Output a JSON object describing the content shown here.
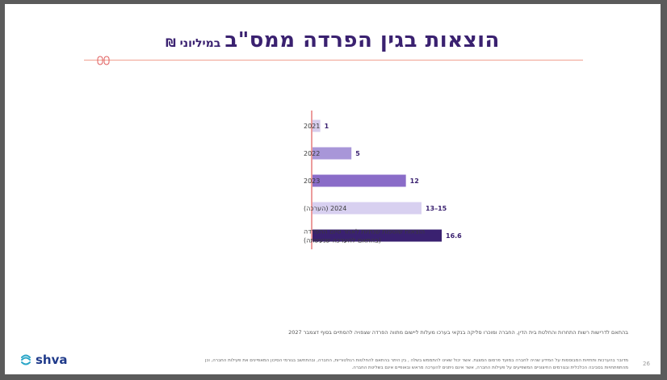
{
  "title": {
    "main": "הוצאות בגין הפרדה ממס\"ב",
    "sub": "במיליוני ₪"
  },
  "chart_data": {
    "type": "bar",
    "orientation": "horizontal",
    "categories": [
      "2021",
      "2022",
      "2023",
      "2024 (הערכה)",
      "הוצאות שוטפות שנתיות לאחר סיום ההפרדה (בהתאם להערכה שנעשתה)"
    ],
    "category_lines": [
      [
        "2021"
      ],
      [
        "2022"
      ],
      [
        "2023"
      ],
      [
        "2024 (הערכה)"
      ],
      [
        "הוצאות שוטפות שנתיות לאחר סיום ההפרדה",
        "(בהתאם להערכה שנעשתה)"
      ]
    ],
    "values": [
      1,
      5,
      12,
      14,
      16.6
    ],
    "value_labels": [
      "1",
      "5",
      "12",
      "13–15",
      "16.6"
    ],
    "bar_colors": [
      "#d6ccec",
      "#a896d8",
      "#8a6cc8",
      "#d8d0f0",
      "#3a2170"
    ],
    "xlim": [
      0,
      16.6
    ],
    "xlabel": "",
    "ylabel": ""
  },
  "colors": {
    "title": "#3a2170",
    "axis": "#e05a5a",
    "value_label": "#3a2170",
    "category_label": "#3a3a3a"
  },
  "footnote": "בהתאם לדרישות רשות התחרות והחלטת בית הדין, החברה ומוכרו סליקה בנקאי בערכו מעלות ליישום מתווה הפרדה שצפויה להסתיים בסוף דצמבר 2027",
  "fine_print": [
    "מדובר בהערכות ותחזיות המבוססות על המידע שהיה לחברה במועד פרסום המצגת. אשר יכול שאינו להתממש בשלה , בין היתר בהתאם להחלטות רגולטוריות, החברה, ובהתחשב בגורמי הסיכון המאפיינים את פעילות החברה, וכן",
    "מהתפתחויות בסביבה הכלכלית ובגורמים החיצוניים המשפיעים על פעילות החברה, אשר אינם ניתנים להערכה מראש ובאופיים אינם בשליטת החברה."
  ],
  "logo_text": "shva",
  "page_number": "26"
}
